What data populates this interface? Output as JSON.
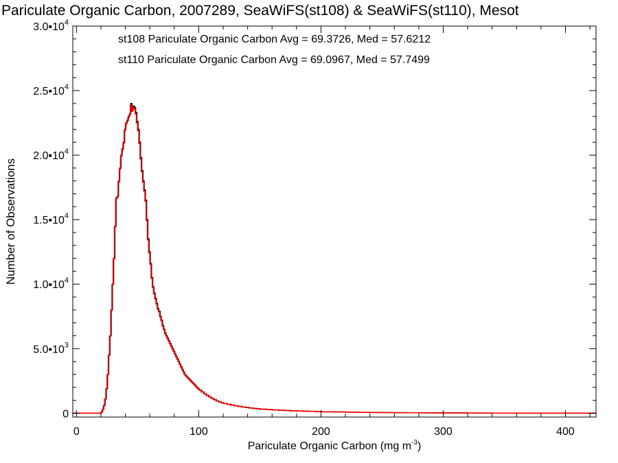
{
  "chart_data": {
    "type": "line",
    "title": "Pariculate Organic Carbon, 2007289, SeaWiFS(st108) & SeaWiFS(st110), Mesot",
    "xlabel": "Pariculate Organic Carbon (mg m",
    "xlabel_sup": "-3",
    "xlabel_tail": ")",
    "ylabel": "Number of Observations",
    "xlim": [
      -3,
      425
    ],
    "ylim": [
      -300,
      30000
    ],
    "x_ticks": [
      {
        "value": 0,
        "label": "0"
      },
      {
        "value": 100,
        "label": "100"
      },
      {
        "value": 200,
        "label": "200"
      },
      {
        "value": 300,
        "label": "300"
      },
      {
        "value": 400,
        "label": "400"
      }
    ],
    "y_ticks": [
      {
        "value": 0,
        "label": "0",
        "exp": ""
      },
      {
        "value": 5000,
        "label": "5.0•10",
        "exp": "3"
      },
      {
        "value": 10000,
        "label": "1.0•10",
        "exp": "4"
      },
      {
        "value": 15000,
        "label": "1.5•10",
        "exp": "4"
      },
      {
        "value": 20000,
        "label": "2.0•10",
        "exp": "4"
      },
      {
        "value": 25000,
        "label": "2.5•10",
        "exp": "4"
      },
      {
        "value": 30000,
        "label": "3.0•10",
        "exp": "4"
      }
    ],
    "annotations": [
      {
        "text": "st108 Pariculate Organic Carbon Avg = 69.3726, Med = 57.6212",
        "color": "#000000"
      },
      {
        "text": "st110 Pariculate Organic Carbon Avg = 69.0967, Med = 57.7499",
        "color": "#ff0000"
      }
    ],
    "step_points": [
      [
        -3,
        0
      ],
      [
        18,
        0
      ],
      [
        20,
        100
      ],
      [
        21,
        300
      ],
      [
        22,
        600
      ],
      [
        23,
        1100
      ],
      [
        24,
        1900
      ],
      [
        25,
        3000
      ],
      [
        26,
        4500
      ],
      [
        27,
        6000
      ],
      [
        28,
        8000
      ],
      [
        29,
        10000
      ],
      [
        30,
        12000
      ],
      [
        31,
        14500
      ],
      [
        32,
        16700
      ],
      [
        33,
        16800
      ],
      [
        34,
        18000
      ],
      [
        35,
        19000
      ],
      [
        36,
        20000
      ],
      [
        37,
        20500
      ],
      [
        38,
        21000
      ],
      [
        39,
        22000
      ],
      [
        40,
        22500
      ],
      [
        41,
        22700
      ],
      [
        42,
        23000
      ],
      [
        43,
        23200
      ],
      [
        44,
        24000
      ],
      [
        45,
        23500
      ],
      [
        46,
        23800
      ],
      [
        47,
        23700
      ],
      [
        48,
        23300
      ],
      [
        49,
        22600
      ],
      [
        50,
        22000
      ],
      [
        51,
        21000
      ],
      [
        52,
        19800
      ],
      [
        53,
        18800
      ],
      [
        54,
        18000
      ],
      [
        55,
        17300
      ],
      [
        56,
        16500
      ],
      [
        57,
        15000
      ],
      [
        58,
        13500
      ],
      [
        59,
        12500
      ],
      [
        60,
        11600
      ],
      [
        61,
        10500
      ],
      [
        62,
        9800
      ],
      [
        63,
        9300
      ],
      [
        64,
        8900
      ],
      [
        65,
        8500
      ],
      [
        66,
        8100
      ],
      [
        67,
        7900
      ],
      [
        68,
        7500
      ],
      [
        69,
        7200
      ],
      [
        70,
        6800
      ],
      [
        71,
        6500
      ],
      [
        72,
        6200
      ],
      [
        73,
        6000
      ],
      [
        74,
        5800
      ],
      [
        75,
        5600
      ],
      [
        76,
        5400
      ],
      [
        77,
        5200
      ],
      [
        78,
        5000
      ],
      [
        79,
        4800
      ],
      [
        80,
        4600
      ],
      [
        81,
        4400
      ],
      [
        82,
        4200
      ],
      [
        83,
        4000
      ],
      [
        84,
        3800
      ],
      [
        85,
        3600
      ],
      [
        86,
        3400
      ],
      [
        87,
        3200
      ],
      [
        88,
        3000
      ],
      [
        89,
        2900
      ],
      [
        90,
        2800
      ],
      [
        91,
        2700
      ],
      [
        92,
        2600
      ],
      [
        93,
        2500
      ],
      [
        94,
        2400
      ],
      [
        95,
        2300
      ],
      [
        96,
        2200
      ],
      [
        97,
        2100
      ],
      [
        98,
        2000
      ],
      [
        99,
        1900
      ],
      [
        100,
        1800
      ],
      [
        102,
        1650
      ],
      [
        104,
        1500
      ],
      [
        106,
        1380
      ],
      [
        108,
        1260
      ],
      [
        110,
        1150
      ],
      [
        112,
        1050
      ],
      [
        114,
        960
      ],
      [
        116,
        880
      ],
      [
        118,
        810
      ],
      [
        120,
        750
      ],
      [
        123,
        690
      ],
      [
        126,
        630
      ],
      [
        129,
        570
      ],
      [
        132,
        520
      ],
      [
        135,
        480
      ],
      [
        138,
        440
      ],
      [
        141,
        400
      ],
      [
        144,
        370
      ],
      [
        147,
        340
      ],
      [
        150,
        310
      ],
      [
        155,
        280
      ],
      [
        160,
        250
      ],
      [
        165,
        230
      ],
      [
        170,
        210
      ],
      [
        175,
        190
      ],
      [
        180,
        170
      ],
      [
        185,
        155
      ],
      [
        190,
        140
      ],
      [
        195,
        125
      ],
      [
        200,
        110
      ],
      [
        210,
        95
      ],
      [
        220,
        80
      ],
      [
        230,
        65
      ],
      [
        240,
        55
      ],
      [
        250,
        45
      ],
      [
        260,
        38
      ],
      [
        270,
        32
      ],
      [
        280,
        26
      ],
      [
        290,
        20
      ],
      [
        300,
        15
      ],
      [
        320,
        10
      ],
      [
        340,
        6
      ],
      [
        360,
        3
      ],
      [
        380,
        0
      ],
      [
        425,
        0
      ]
    ],
    "series": [
      {
        "color": "#000000",
        "y_scale": 1.0,
        "x_shift": 0.4
      },
      {
        "color": "#ff0000",
        "y_scale": 0.995,
        "x_shift": 0
      }
    ],
    "grid": false
  }
}
